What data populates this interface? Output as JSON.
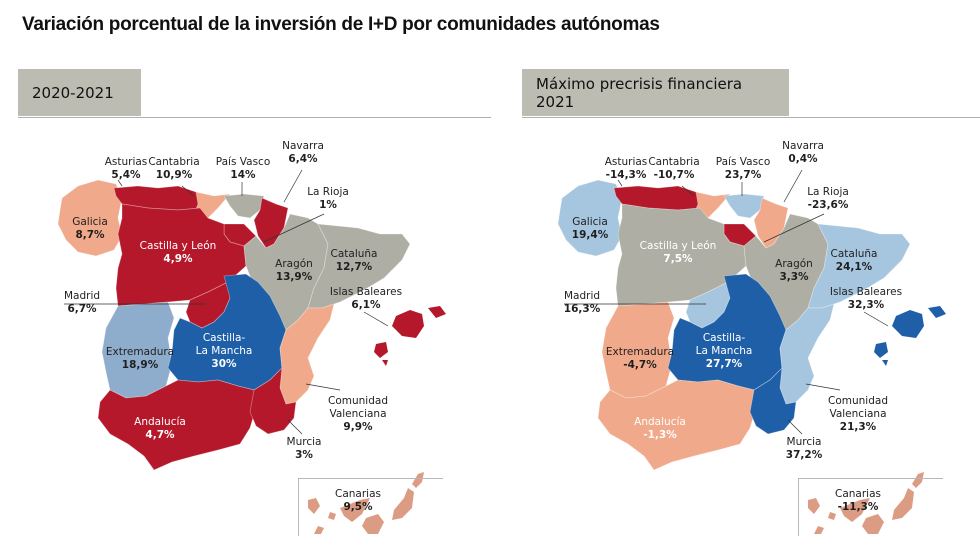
{
  "title": "Variación porcentual de la inversión de I+D por comunidades autónomas",
  "colors": {
    "dark_red": "#b5182b",
    "salmon": "#f0a98a",
    "gray": "#aeaea4",
    "light_blue": "#a6c6e0",
    "mid_blue": "#8eaccb",
    "blue": "#1f5fa8",
    "tab_bg": "#bcbcb2"
  },
  "maps": [
    {
      "period": "2020-2021",
      "regions": {
        "galicia": {
          "name": "Galicia",
          "value": "8,7%",
          "color": "salmon"
        },
        "asturias": {
          "name": "Asturias",
          "value": "5,4%",
          "color": "dark_red"
        },
        "cantabria": {
          "name": "Cantabria",
          "value": "10,9%",
          "color": "salmon"
        },
        "pais_vasco": {
          "name": "País Vasco",
          "value": "14%",
          "color": "gray"
        },
        "navarra": {
          "name": "Navarra",
          "value": "6,4%",
          "color": "dark_red"
        },
        "la_rioja": {
          "name": "La Rioja",
          "value": "1%",
          "color": "dark_red"
        },
        "castilla_leon": {
          "name": "Castilla y León",
          "value": "4,9%",
          "color": "dark_red"
        },
        "aragon": {
          "name": "Aragón",
          "value": "13,9%",
          "color": "gray"
        },
        "cataluna": {
          "name": "Cataluña",
          "value": "12,7%",
          "color": "gray"
        },
        "madrid": {
          "name": "Madrid",
          "value": "6,7%",
          "color": "dark_red"
        },
        "islas_baleares": {
          "name": "Islas Baleares",
          "value": "6,1%",
          "color": "dark_red"
        },
        "extremadura": {
          "name": "Extremadura",
          "value": "18,9%",
          "color": "mid_blue"
        },
        "castilla_mancha": {
          "name": "Castilla-",
          "name2": "La Mancha",
          "value": "30%",
          "color": "blue"
        },
        "valenciana": {
          "name": "Comunidad",
          "name2": "Valenciana",
          "value": "9,9%",
          "color": "salmon"
        },
        "andalucia": {
          "name": "Andalucía",
          "value": "4,7%",
          "color": "dark_red"
        },
        "murcia": {
          "name": "Murcia",
          "value": "3%",
          "color": "dark_red"
        },
        "canarias": {
          "name": "Canarias",
          "value": "9,5%",
          "color": "salmon"
        }
      }
    },
    {
      "period": "Máximo precrisis financiera 2021",
      "regions": {
        "galicia": {
          "name": "Galicia",
          "value": "19,4%",
          "color": "light_blue"
        },
        "asturias": {
          "name": "Asturias",
          "value": "-14,3%",
          "color": "dark_red"
        },
        "cantabria": {
          "name": "Cantabria",
          "value": "-10,7%",
          "color": "salmon"
        },
        "pais_vasco": {
          "name": "País Vasco",
          "value": "23,7%",
          "color": "light_blue"
        },
        "navarra": {
          "name": "Navarra",
          "value": "0,4%",
          "color": "salmon"
        },
        "la_rioja": {
          "name": "La Rioja",
          "value": "-23,6%",
          "color": "dark_red"
        },
        "castilla_leon": {
          "name": "Castilla y León",
          "value": "7,5%",
          "color": "gray"
        },
        "aragon": {
          "name": "Aragón",
          "value": "3,3%",
          "color": "gray"
        },
        "cataluna": {
          "name": "Cataluña",
          "value": "24,1%",
          "color": "light_blue"
        },
        "madrid": {
          "name": "Madrid",
          "value": "16,3%",
          "color": "light_blue"
        },
        "islas_baleares": {
          "name": "Islas Baleares",
          "value": "32,3%",
          "color": "blue"
        },
        "extremadura": {
          "name": "Extremadura",
          "value": "-4,7%",
          "color": "salmon"
        },
        "castilla_mancha": {
          "name": "Castilla-",
          "name2": "La Mancha",
          "value": "27,7%",
          "color": "blue"
        },
        "valenciana": {
          "name": "Comunidad",
          "name2": "Valenciana",
          "value": "21,3%",
          "color": "light_blue"
        },
        "andalucia": {
          "name": "Andalucía",
          "value": "-1,3%",
          "color": "salmon"
        },
        "murcia": {
          "name": "Murcia",
          "value": "37,2%",
          "color": "blue"
        },
        "canarias": {
          "name": "Canarias",
          "value": "-11,3%",
          "color": "salmon"
        }
      }
    }
  ]
}
